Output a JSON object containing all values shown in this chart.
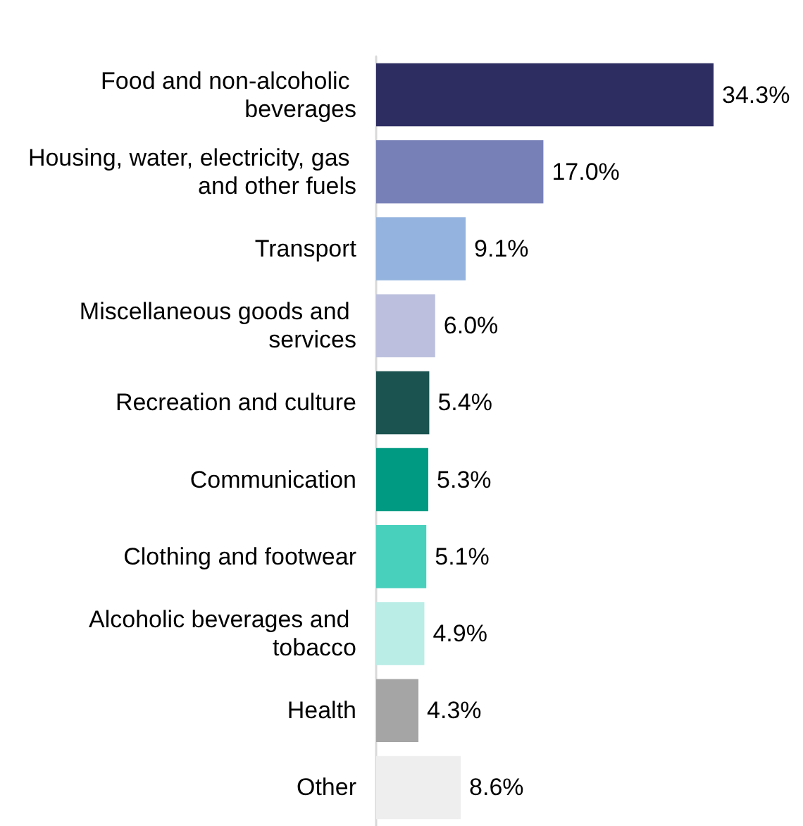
{
  "chart_data": {
    "type": "bar",
    "orientation": "horizontal",
    "categories": [
      "Food and non-alcoholic beverages",
      "Housing, water, electricity, gas and other fuels",
      "Transport",
      "Miscellaneous goods and services",
      "Recreation and culture",
      "Communication",
      "Clothing and footwear",
      "Alcoholic beverages and tobacco",
      "Health",
      "Other"
    ],
    "values": [
      34.3,
      17.0,
      9.1,
      6.0,
      5.4,
      5.3,
      5.1,
      4.9,
      4.3,
      8.6
    ],
    "colors": [
      "#2e2d62",
      "#7880b8",
      "#94b4df",
      "#bcc0de",
      "#1b5350",
      "#009a82",
      "#48d0bc",
      "#b9ede6",
      "#a5a5a5",
      "#eeeeee"
    ],
    "value_labels": [
      "34.3%",
      "17.0%",
      "9.1%",
      "6.0%",
      "5.4%",
      "5.3%",
      "5.1%",
      "4.9%",
      "4.3%",
      "8.6%"
    ],
    "grid": false
  }
}
